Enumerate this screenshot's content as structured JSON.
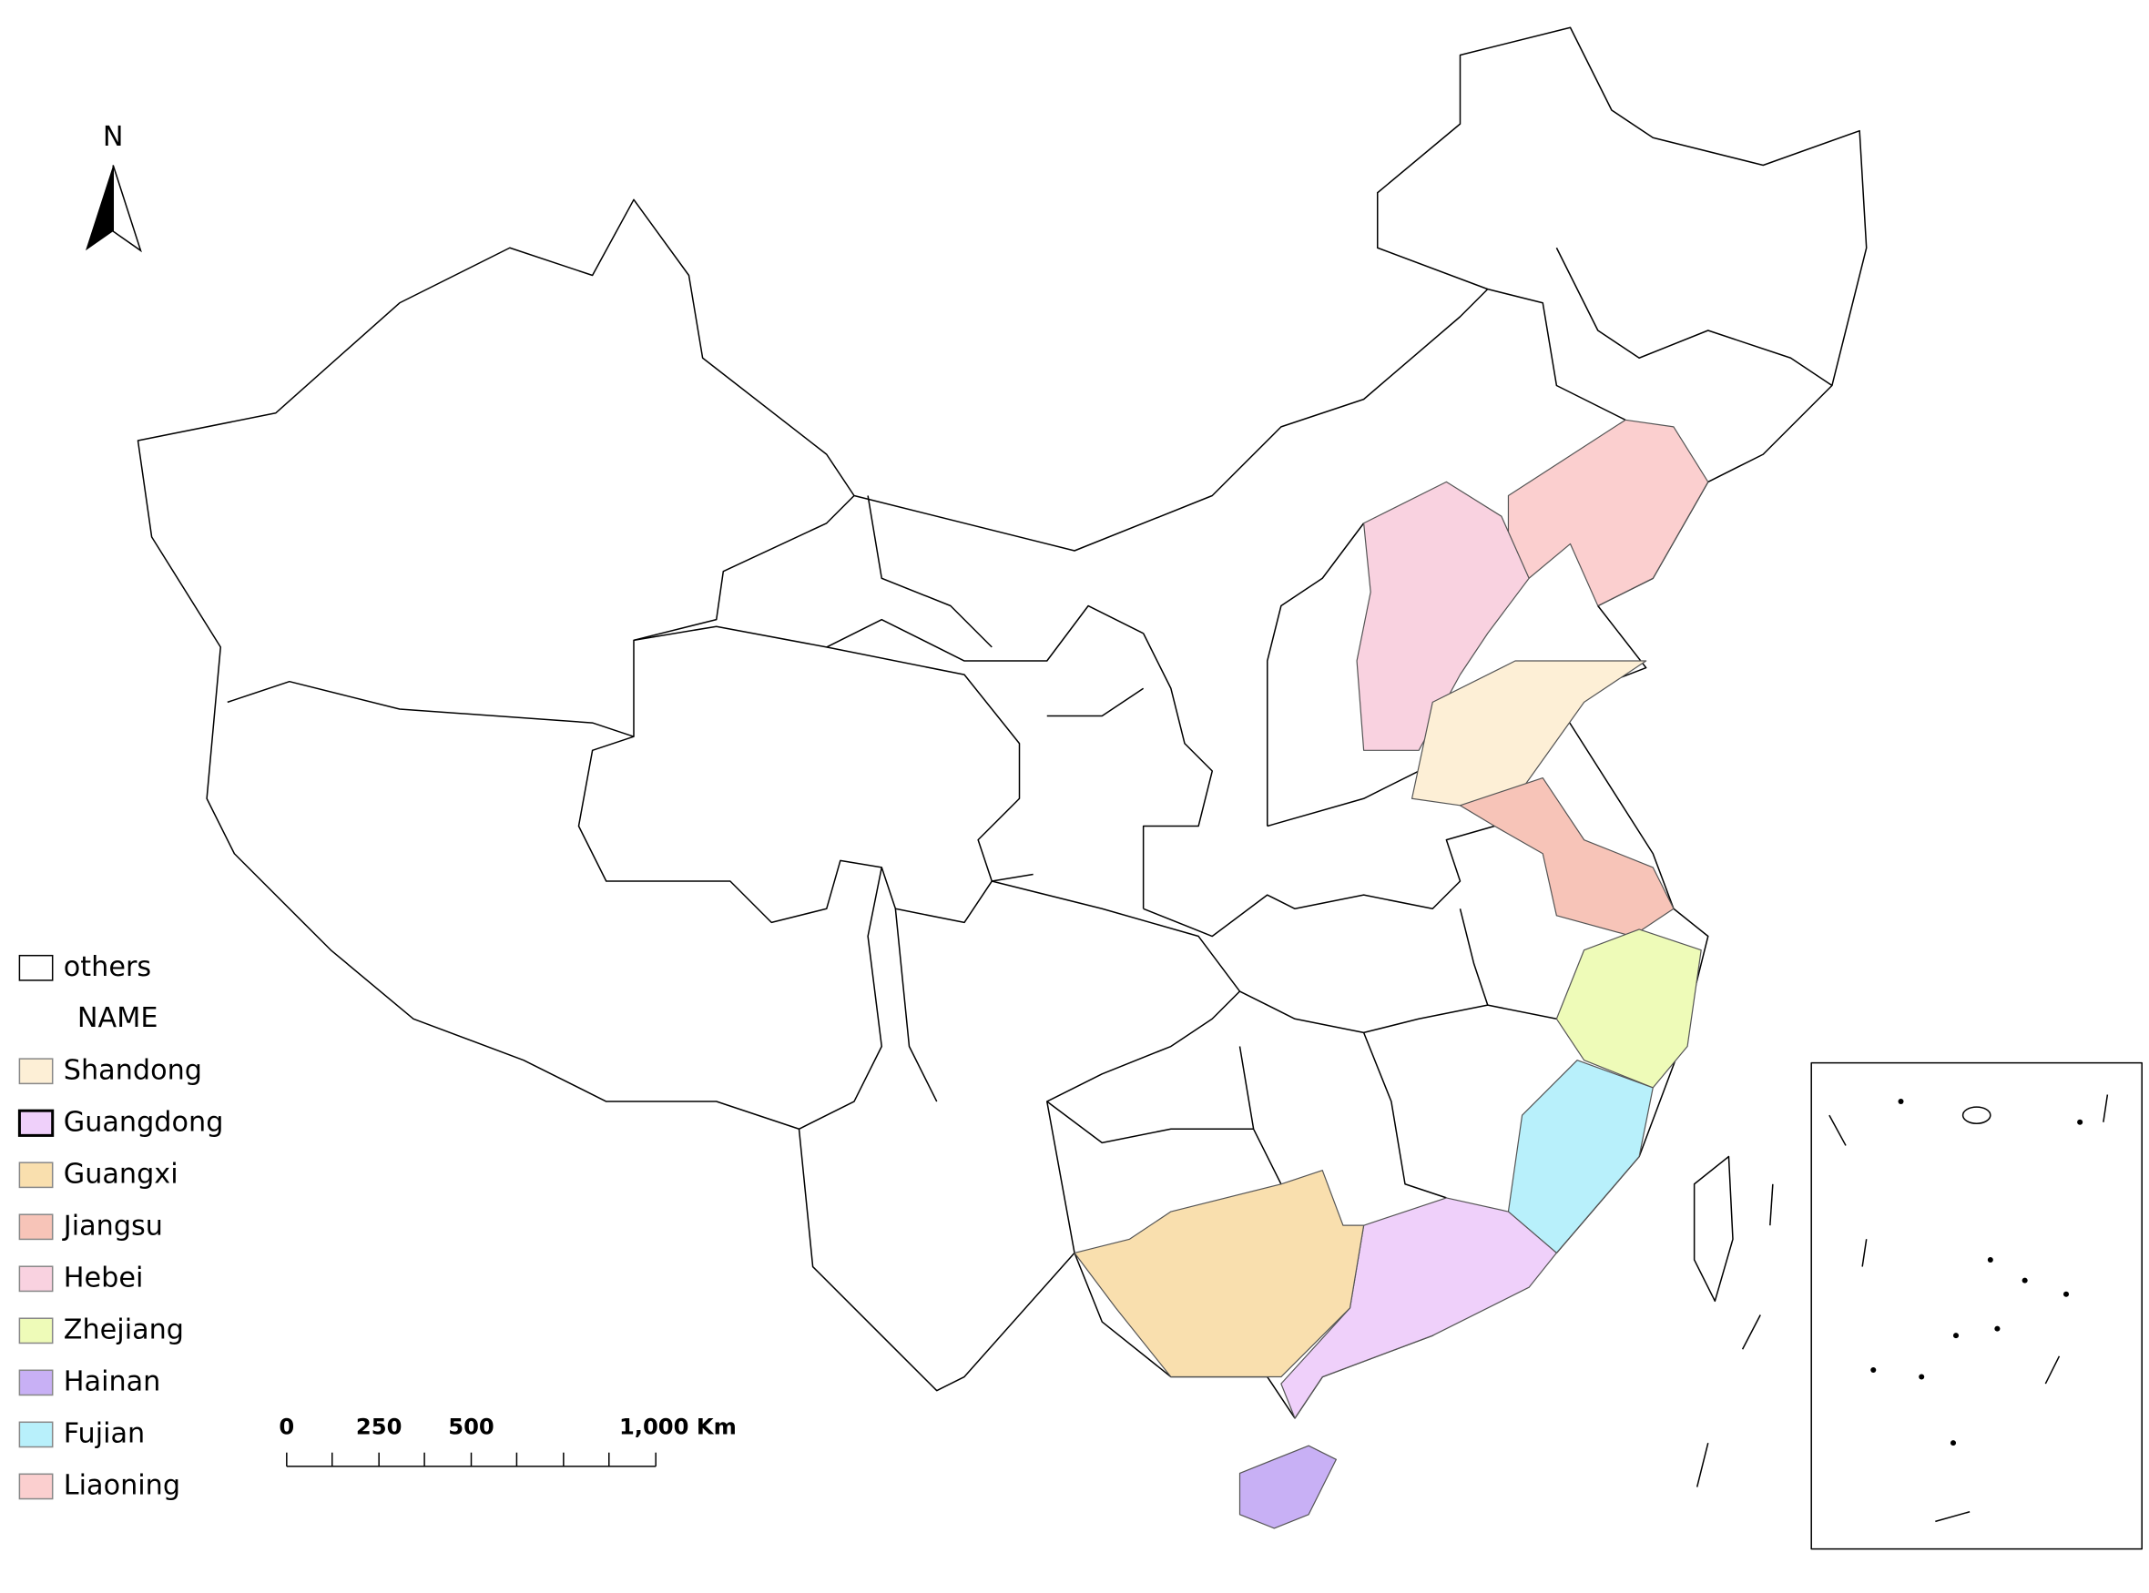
{
  "north": "N",
  "legend": {
    "others": "others",
    "header": "NAME",
    "items": [
      {
        "name": "Shandong",
        "color": "#fdefd6"
      },
      {
        "name": "Guangdong",
        "color": "#efd0fa"
      },
      {
        "name": "Guangxi",
        "color": "#f9dfae"
      },
      {
        "name": "Jiangsu",
        "color": "#f7c4b8"
      },
      {
        "name": "Hebei",
        "color": "#f9d2e0"
      },
      {
        "name": "Zhejiang",
        "color": "#eefbb8"
      },
      {
        "name": "Hainan",
        "color": "#c8b0f5"
      },
      {
        "name": "Fujian",
        "color": "#b8f0fb"
      },
      {
        "name": "Liaoning",
        "color": "#fbcfcf"
      }
    ]
  },
  "scale_bar": {
    "labels": [
      "0",
      "250",
      "500",
      "1,000 Km"
    ]
  }
}
